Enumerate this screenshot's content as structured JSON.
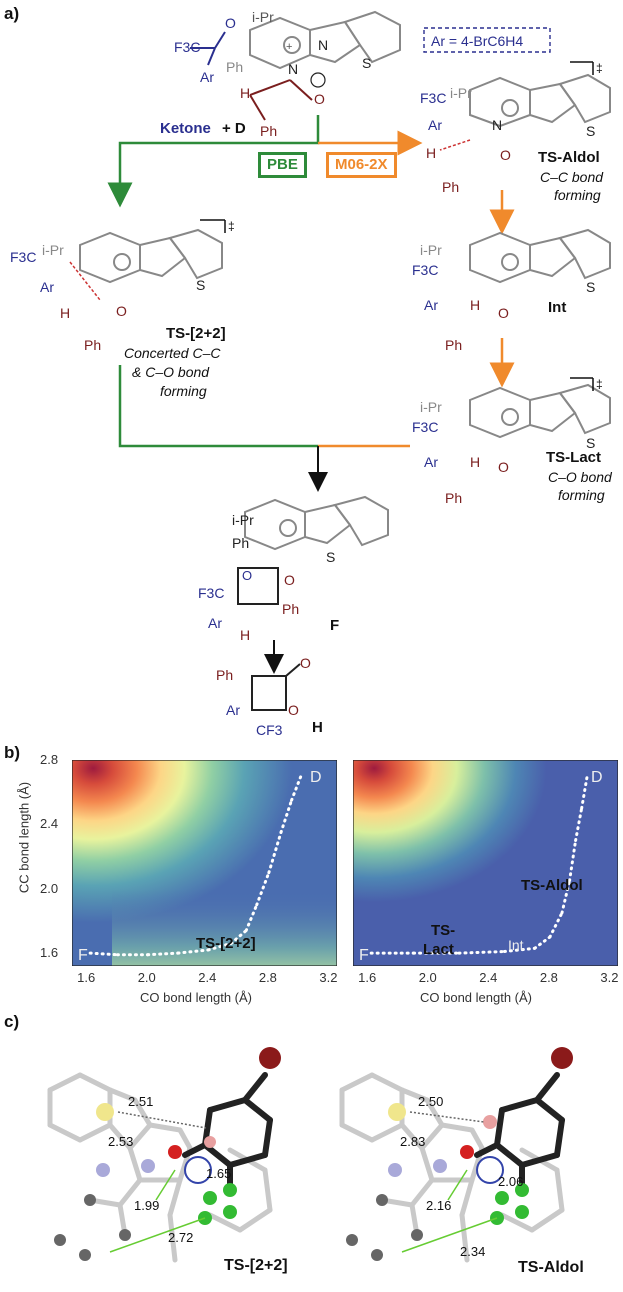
{
  "panels": {
    "a": "a)",
    "b": "b)",
    "c": "c)"
  },
  "scheme": {
    "ar_def": "Ar = 4-BrC6H4",
    "ketone_label": "Ketone",
    "plus_d": "+ D",
    "method_left": "PBE",
    "method_right": "M06-2X",
    "ts_aldol": {
      "name": "TS-Aldol",
      "desc1": "C–C bond",
      "desc2": "forming"
    },
    "int": {
      "name": "Int"
    },
    "ts_lact": {
      "name": "TS-Lact",
      "desc1": "C–O bond",
      "desc2": "forming"
    },
    "ts_22": {
      "name": "TS-[2+2]",
      "desc1": "Concerted C–C",
      "desc2": "& C–O bond",
      "desc3": "forming"
    },
    "product_f": "F",
    "product_h": "H",
    "dagger": "‡",
    "colors": {
      "green": "#2e8b3a",
      "orange": "#f08a2c",
      "blue": "#2a2f8f",
      "maroon": "#7a1e1e",
      "grey": "#888888"
    }
  },
  "surfaces": {
    "xlabel": "CO bond length (Å)",
    "ylabel": "CC bond length (Å)",
    "xticks": [
      "1.6",
      "2.0",
      "2.4",
      "2.8",
      "3.2"
    ],
    "yticks": [
      "2.8",
      "2.4",
      "2.0",
      "1.6"
    ],
    "left": {
      "start": "D",
      "end": "F",
      "ts": "TS-[2+2]"
    },
    "right": {
      "start": "D",
      "end": "F",
      "ts_top": "TS-Aldol",
      "ts_bottom1": "TS-",
      "ts_bottom2": "Lact",
      "int": "Int"
    }
  },
  "chart_data": [
    {
      "type": "heatmap",
      "title": "",
      "xlabel": "CO bond length (Å)",
      "ylabel": "CC bond length (Å)",
      "xlim": [
        1.5,
        3.25
      ],
      "ylim": [
        1.52,
        2.8
      ],
      "path": {
        "x": [
          1.62,
          1.8,
          2.0,
          2.2,
          2.4,
          2.55,
          2.65,
          2.72,
          2.8,
          2.88,
          2.95,
          3.02
        ],
        "y": [
          1.6,
          1.59,
          1.59,
          1.6,
          1.62,
          1.66,
          1.74,
          1.9,
          2.1,
          2.35,
          2.55,
          2.72
        ]
      },
      "labels": [
        "D",
        "F",
        "TS-[2+2]"
      ]
    },
    {
      "type": "heatmap",
      "title": "",
      "xlabel": "CO bond length (Å)",
      "ylabel": "CC bond length (Å)",
      "xlim": [
        1.5,
        3.25
      ],
      "ylim": [
        1.52,
        2.8
      ],
      "path": {
        "x": [
          1.62,
          1.9,
          2.2,
          2.5,
          2.7,
          2.8,
          2.88,
          2.93,
          2.97,
          3.01,
          3.05
        ],
        "y": [
          1.6,
          1.6,
          1.6,
          1.61,
          1.63,
          1.7,
          1.85,
          2.05,
          2.3,
          2.5,
          2.72
        ]
      },
      "labels": [
        "D",
        "F",
        "TS-Aldol",
        "TS-Lact",
        "Int"
      ]
    }
  ],
  "structures": {
    "left": {
      "name": "TS-[2+2]",
      "d1": "2.51",
      "d2": "2.53",
      "d3": "1.65",
      "d4": "1.99",
      "d5": "2.72"
    },
    "right": {
      "name": "TS-Aldol",
      "d1": "2.50",
      "d2": "2.83",
      "d3": "2.06",
      "d4": "2.16",
      "d5": "2.34"
    }
  }
}
